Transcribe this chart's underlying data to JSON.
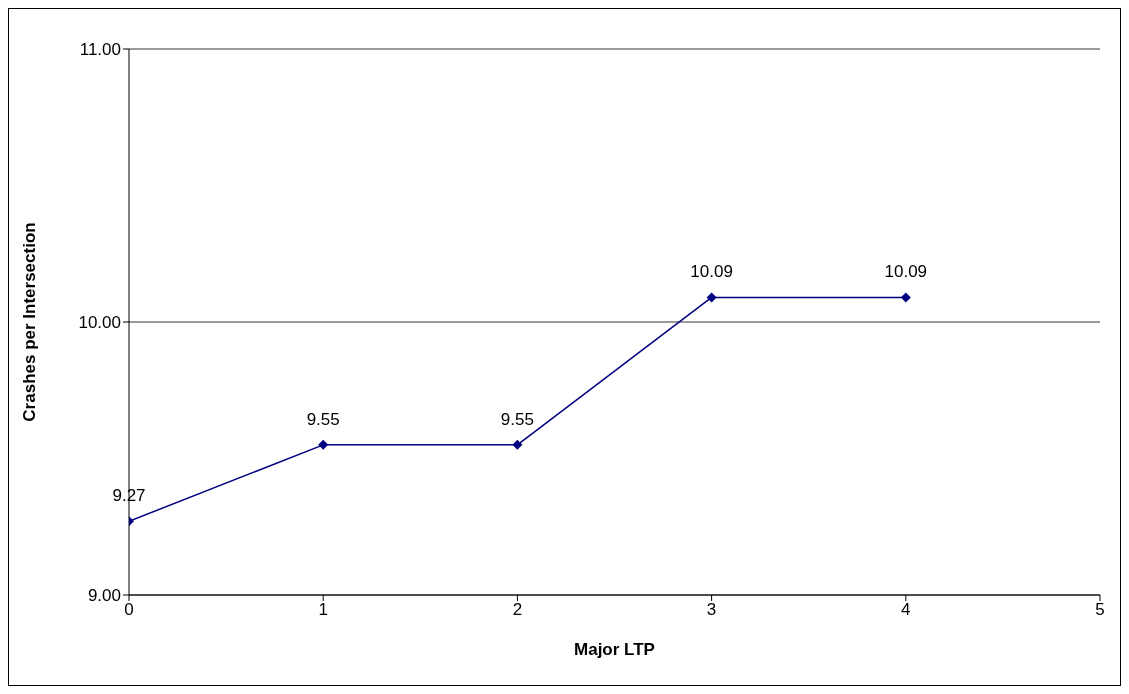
{
  "chart_data": {
    "type": "line",
    "xlabel": "Major LTP",
    "ylabel": "Crashes per Intersection",
    "x": [
      0,
      1,
      2,
      3,
      4
    ],
    "series": [
      {
        "color": "#000080",
        "values": [
          9.27,
          9.55,
          9.55,
          10.09,
          10.09
        ]
      }
    ],
    "xlim": [
      0,
      5
    ],
    "xticks": [
      0,
      1,
      2,
      3,
      4,
      5
    ],
    "ylim": [
      9,
      11
    ],
    "yticks": [
      {
        "value": 9,
        "label": "9.00"
      },
      {
        "value": 10,
        "label": "10.00"
      },
      {
        "value": 11,
        "label": "11.00"
      }
    ],
    "grid": "y",
    "marker": "diamond",
    "line_style": "solid",
    "data_labels": true
  }
}
